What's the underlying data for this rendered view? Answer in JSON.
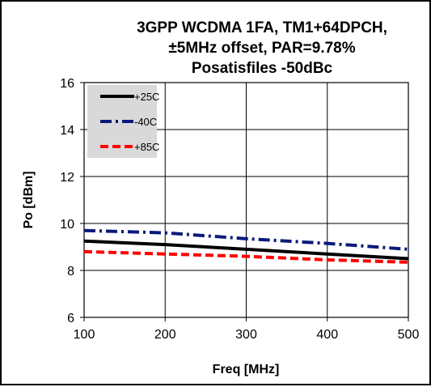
{
  "chart_data": {
    "type": "line",
    "title": [
      "3GPP WCDMA 1FA, TM1+64DPCH,",
      "±5MHz offset, PAR=9.78%",
      "Posatisfiles -50dBc"
    ],
    "xlabel": "Freq [MHz]",
    "ylabel": "Po [dBm]",
    "xlim": [
      100,
      500
    ],
    "ylim": [
      6,
      16
    ],
    "xticks": [
      100,
      200,
      300,
      400,
      500
    ],
    "yticks": [
      6,
      8,
      10,
      12,
      14,
      16
    ],
    "grid": true,
    "legend_position": "top-left",
    "series": [
      {
        "name": "+25C",
        "color": "#000000",
        "dash": "solid",
        "x": [
          100,
          200,
          300,
          400,
          500
        ],
        "y": [
          9.25,
          9.1,
          8.9,
          8.7,
          8.5
        ]
      },
      {
        "name": "-40C",
        "color": "#0a1a7a",
        "dash": "dashdot",
        "x": [
          100,
          200,
          300,
          400,
          500
        ],
        "y": [
          9.7,
          9.6,
          9.35,
          9.15,
          8.9
        ]
      },
      {
        "name": "+85C",
        "color": "#ff0000",
        "dash": "dash",
        "x": [
          100,
          200,
          300,
          400,
          500
        ],
        "y": [
          8.8,
          8.7,
          8.6,
          8.45,
          8.35
        ]
      }
    ]
  }
}
